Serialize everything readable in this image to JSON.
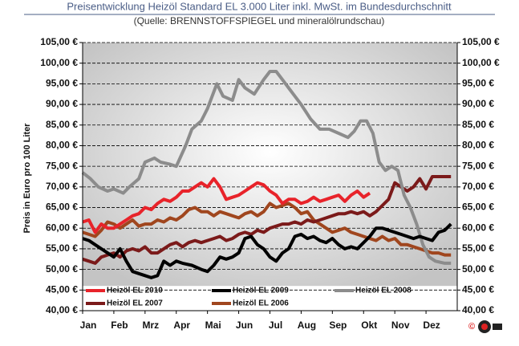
{
  "chart_data": {
    "type": "line",
    "title": "Preisentwicklung Heizöl Standard EL 3.000 Liter inkl. MwSt. im Bundesdurchschnitt",
    "subtitle": "(Quelle: BRENNSTOFFSPIEGEL und mineralölrundschau)",
    "y_label": "Preis in Euro pro 100 Liter",
    "logo": "©",
    "xlim": [
      0,
      12
    ],
    "xticks": [
      {
        "value": 0,
        "label": "Jan"
      },
      {
        "value": 1,
        "label": "Feb"
      },
      {
        "value": 2,
        "label": "Mrz"
      },
      {
        "value": 3,
        "label": "Apr"
      },
      {
        "value": 4,
        "label": "Mai"
      },
      {
        "value": 5,
        "label": "Jun"
      },
      {
        "value": 6,
        "label": "Jul"
      },
      {
        "value": 7,
        "label": "Aug"
      },
      {
        "value": 8,
        "label": "Sep"
      },
      {
        "value": 9,
        "label": "Okt"
      },
      {
        "value": 10,
        "label": "Nov"
      },
      {
        "value": 11,
        "label": "Dez"
      }
    ],
    "ylim": [
      40,
      105
    ],
    "yticks": [
      {
        "value": 40,
        "label": "40,00 €"
      },
      {
        "value": 45,
        "label": "45,00 €"
      },
      {
        "value": 50,
        "label": "50,00 €"
      },
      {
        "value": 55,
        "label": "55,00 €"
      },
      {
        "value": 60,
        "label": "60,00 €"
      },
      {
        "value": 65,
        "label": "65,00 €"
      },
      {
        "value": 70,
        "label": "70,00 €"
      },
      {
        "value": 75,
        "label": "75,00 €"
      },
      {
        "value": 80,
        "label": "80,00 €"
      },
      {
        "value": 85,
        "label": "85,00 €"
      },
      {
        "value": 90,
        "label": "90,00 €"
      },
      {
        "value": 95,
        "label": "95,00 €"
      },
      {
        "value": 100,
        "label": "100,00 €"
      },
      {
        "value": 105,
        "label": "105,00 €"
      }
    ],
    "grid": true,
    "series": [
      {
        "name": "Heizöl EL 2010",
        "color": "#e8232a",
        "x": [
          0,
          0.2,
          0.4,
          0.6,
          0.8,
          1,
          1.2,
          1.4,
          1.6,
          1.8,
          2,
          2.2,
          2.4,
          2.6,
          2.8,
          3,
          3.2,
          3.4,
          3.6,
          3.8,
          4,
          4.2,
          4.4,
          4.6,
          4.8,
          5,
          5.2,
          5.4,
          5.6,
          5.8,
          6,
          6.2,
          6.4,
          6.6,
          6.8,
          7,
          7.2,
          7.4,
          7.6,
          7.8,
          8,
          8.2,
          8.4,
          8.6,
          8.8,
          9,
          9.2
        ],
        "values": [
          61.5,
          62,
          59,
          61,
          60,
          60,
          61,
          62,
          63,
          63.5,
          65,
          64.5,
          66,
          67,
          66.5,
          67.5,
          69,
          69,
          70,
          71,
          70,
          72,
          70,
          67,
          67.5,
          68,
          69,
          70,
          71,
          70.5,
          69,
          68,
          66,
          67,
          67,
          66,
          66.5,
          67.5,
          66.5,
          67,
          67.5,
          68,
          66.5,
          68,
          69,
          67.5,
          68.5
        ]
      },
      {
        "name": "Heizöl EL 2009",
        "color": "#000000",
        "x": [
          0,
          0.2,
          0.4,
          0.6,
          0.8,
          1,
          1.2,
          1.4,
          1.6,
          1.8,
          2,
          2.2,
          2.4,
          2.6,
          2.8,
          3,
          3.2,
          3.5,
          3.8,
          4,
          4.2,
          4.4,
          4.6,
          4.8,
          5,
          5.2,
          5.4,
          5.6,
          5.8,
          6,
          6.2,
          6.4,
          6.6,
          6.8,
          7,
          7.2,
          7.4,
          7.6,
          7.8,
          8,
          8.2,
          8.4,
          8.6,
          8.8,
          9,
          9.2,
          9.4,
          9.6,
          9.8,
          10,
          10.2,
          10.4,
          10.6,
          10.8,
          11,
          11.2,
          11.4,
          11.6,
          11.8
        ],
        "values": [
          57.5,
          57,
          56,
          55,
          54,
          53,
          55,
          52,
          49.5,
          49,
          48.5,
          48,
          48.5,
          52,
          51,
          52,
          51.5,
          51,
          50,
          49.5,
          51,
          53,
          52.5,
          53,
          54,
          57.5,
          58,
          56,
          55,
          53,
          52,
          54,
          55,
          58,
          58.5,
          57.5,
          58,
          57,
          56.5,
          57.5,
          56,
          55,
          55.5,
          55,
          56.5,
          58,
          60,
          60,
          59.5,
          59,
          58.5,
          58,
          57.5,
          58,
          57.5,
          57,
          59,
          59.5,
          61
        ]
      },
      {
        "name": "Heizöl EL 2008",
        "color": "#8c8c8c",
        "x": [
          0,
          0.25,
          0.5,
          0.8,
          1,
          1.3,
          1.5,
          1.8,
          2,
          2.3,
          2.5,
          2.8,
          3,
          3.3,
          3.5,
          3.8,
          4,
          4.3,
          4.5,
          4.8,
          5,
          5.2,
          5.5,
          5.8,
          6,
          6.2,
          6.4,
          6.6,
          6.8,
          7,
          7.3,
          7.6,
          7.9,
          8.2,
          8.5,
          8.7,
          8.9,
          9.1,
          9.3,
          9.5,
          9.7,
          9.9,
          10.1,
          10.3,
          10.5,
          10.7,
          10.9,
          11.1,
          11.3,
          11.6,
          11.8
        ],
        "values": [
          73.5,
          72,
          70,
          69,
          69.5,
          68.5,
          70,
          72,
          76,
          77,
          76,
          75.5,
          75,
          80,
          84,
          86,
          89,
          95,
          92,
          91,
          96,
          94,
          92.5,
          96,
          98,
          98,
          96,
          94,
          92,
          90,
          86.5,
          84,
          84,
          83,
          82,
          83.5,
          86,
          86,
          83,
          76,
          74,
          75,
          74,
          68,
          65,
          61,
          56,
          53,
          52,
          51.5,
          51.5
        ]
      },
      {
        "name": "Heizöl EL 2007",
        "color": "#7b1a1a",
        "x": [
          0,
          0.2,
          0.4,
          0.6,
          0.8,
          1,
          1.2,
          1.4,
          1.6,
          1.8,
          2,
          2.2,
          2.4,
          2.6,
          2.8,
          3,
          3.2,
          3.4,
          3.6,
          3.8,
          4,
          4.2,
          4.4,
          4.6,
          4.8,
          5,
          5.2,
          5.4,
          5.6,
          5.8,
          6,
          6.2,
          6.4,
          6.6,
          6.8,
          7,
          7.2,
          7.4,
          7.6,
          7.8,
          8,
          8.2,
          8.4,
          8.6,
          8.8,
          9,
          9.2,
          9.4,
          9.6,
          9.8,
          10,
          10.2,
          10.4,
          10.6,
          10.8,
          11,
          11.2,
          11.4,
          11.6,
          11.8
        ],
        "values": [
          52.5,
          52,
          51.5,
          53,
          53.5,
          54,
          53,
          54.5,
          55,
          54.5,
          55.5,
          54,
          54,
          55,
          56,
          56.5,
          55.5,
          56.5,
          57,
          56.5,
          57,
          57.5,
          58,
          57,
          57.5,
          58.5,
          59,
          58.5,
          59.5,
          59,
          60,
          60.5,
          61,
          61,
          61.5,
          61,
          62,
          61.5,
          62,
          62.5,
          63,
          63.5,
          63.5,
          64,
          63.5,
          64,
          63,
          64,
          65.5,
          67,
          71,
          70,
          69,
          70,
          72,
          69.5,
          72.5,
          72.5,
          72.5,
          72.5
        ]
      },
      {
        "name": "Heizöl EL 2006",
        "color": "#a0461e",
        "x": [
          0,
          0.2,
          0.4,
          0.6,
          0.8,
          1,
          1.2,
          1.4,
          1.6,
          1.8,
          2,
          2.2,
          2.4,
          2.6,
          2.8,
          3,
          3.2,
          3.4,
          3.6,
          3.8,
          4,
          4.2,
          4.4,
          4.6,
          4.8,
          5,
          5.2,
          5.4,
          5.6,
          5.8,
          6,
          6.2,
          6.4,
          6.6,
          6.8,
          7,
          7.2,
          7.4,
          7.6,
          7.8,
          8,
          8.2,
          8.4,
          8.6,
          8.8,
          9,
          9.2,
          9.4,
          9.6,
          9.8,
          10,
          10.2,
          10.4,
          10.6,
          10.8,
          11,
          11.2,
          11.4,
          11.6,
          11.8
        ],
        "values": [
          59,
          58.5,
          58,
          59.5,
          61.5,
          61,
          60,
          61,
          62,
          60.5,
          61,
          61,
          62,
          61.5,
          62.5,
          62,
          63,
          64.5,
          65,
          64,
          64,
          63,
          64,
          63.5,
          63,
          62.5,
          63.5,
          64,
          63,
          64,
          66,
          65,
          65.5,
          66,
          65,
          63.5,
          64,
          62,
          61,
          60,
          59,
          59.5,
          60,
          59,
          58.5,
          58,
          57.5,
          57,
          58,
          57,
          57.5,
          56,
          56,
          55.5,
          55,
          54.5,
          54,
          54,
          53.5,
          53.5
        ]
      }
    ]
  }
}
